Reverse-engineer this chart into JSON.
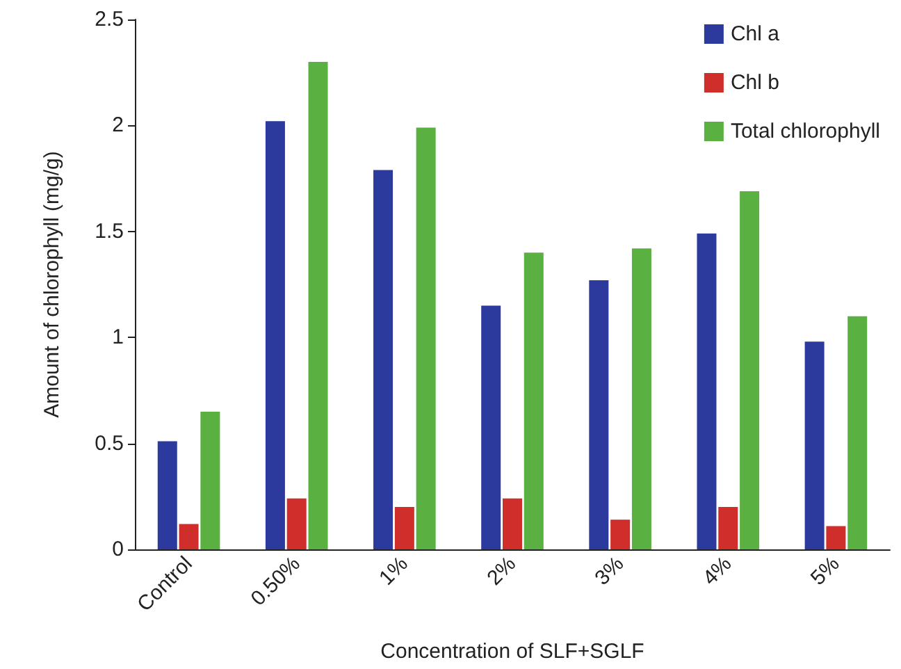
{
  "chart_data": {
    "type": "bar",
    "xlabel": "Concentration of SLF+SGLF",
    "ylabel": "Amount of chlorophyll (mg/g)",
    "categories": [
      "Control",
      "0.50%",
      "1%",
      "2%",
      "3%",
      "4%",
      "5%"
    ],
    "series": [
      {
        "name": "Chl a",
        "color": "#2b3a9c",
        "values": [
          0.51,
          2.02,
          1.79,
          1.15,
          1.27,
          1.49,
          0.98
        ]
      },
      {
        "name": "Chl b",
        "color": "#cf2e2a",
        "values": [
          0.12,
          0.24,
          0.2,
          0.24,
          0.14,
          0.2,
          0.11
        ]
      },
      {
        "name": "Total chlorophyll",
        "color": "#5bb042",
        "values": [
          0.65,
          2.3,
          1.99,
          1.4,
          1.42,
          1.69,
          1.1
        ]
      }
    ],
    "ylim": [
      0,
      2.5
    ],
    "yticks": [
      0,
      0.5,
      1,
      1.5,
      2,
      2.5
    ],
    "grid": false,
    "legend": "top right"
  }
}
